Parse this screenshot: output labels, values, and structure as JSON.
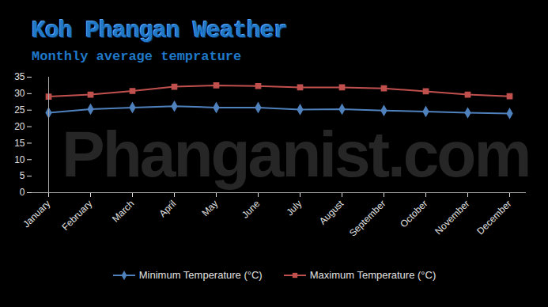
{
  "chart_data": {
    "type": "line",
    "title": "Koh Phangan Weather",
    "subtitle": "Monthly average temprature",
    "annotations": [
      "Phanganist.com"
    ],
    "categories": [
      "January",
      "February",
      "March",
      "April",
      "May",
      "June",
      "July",
      "August",
      "September",
      "October",
      "November",
      "December"
    ],
    "series": [
      {
        "name": "Minimum Temperature (°C)",
        "color": "#4f81bd",
        "marker": "diamond",
        "values": [
          24.2,
          25.3,
          25.8,
          26.2,
          25.8,
          25.8,
          25.2,
          25.3,
          24.9,
          24.6,
          24.2,
          24.0
        ]
      },
      {
        "name": "Maximum Temperature (°C)",
        "color": "#c0504d",
        "marker": "square",
        "values": [
          29.1,
          29.7,
          30.8,
          32.1,
          32.5,
          32.3,
          31.9,
          31.9,
          31.6,
          30.7,
          29.7,
          29.2
        ]
      }
    ],
    "ylim": [
      0,
      35
    ],
    "yticks": [
      0,
      5,
      10,
      15,
      20,
      25,
      30,
      35
    ],
    "grid": false,
    "legend": "bottom"
  }
}
